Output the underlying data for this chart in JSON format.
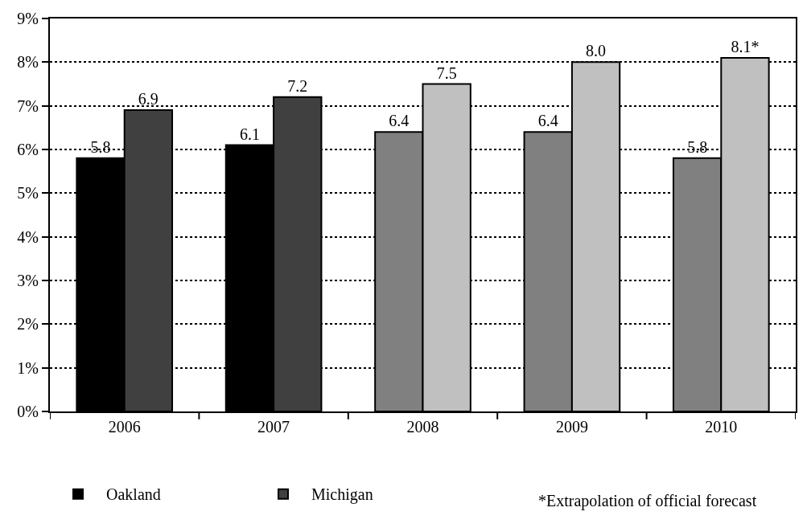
{
  "chart_data": {
    "type": "bar",
    "categories": [
      "2006",
      "2007",
      "2008",
      "2009",
      "2010"
    ],
    "series": [
      {
        "name": "Oakland",
        "colors": [
          "#000000",
          "#000000",
          "#808080",
          "#808080",
          "#808080"
        ],
        "values": [
          5.8,
          6.1,
          6.4,
          6.4,
          5.8
        ],
        "value_labels": [
          "5.8",
          "6.1",
          "6.4",
          "6.4",
          "5.8"
        ]
      },
      {
        "name": "Michigan",
        "colors": [
          "#404040",
          "#404040",
          "#c0c0c0",
          "#c0c0c0",
          "#c0c0c0"
        ],
        "values": [
          6.9,
          7.2,
          7.5,
          8.0,
          8.1
        ],
        "value_labels": [
          "6.9",
          "7.2",
          "7.5",
          "8.0",
          "8.1*"
        ]
      }
    ],
    "ylim": [
      0,
      9
    ],
    "yticks": [
      {
        "value": 0,
        "label": "0%"
      },
      {
        "value": 1,
        "label": "1%"
      },
      {
        "value": 2,
        "label": "2%"
      },
      {
        "value": 3,
        "label": "3%"
      },
      {
        "value": 4,
        "label": "4%"
      },
      {
        "value": 5,
        "label": "5%"
      },
      {
        "value": 6,
        "label": "6%"
      },
      {
        "value": 7,
        "label": "7%"
      },
      {
        "value": 8,
        "label": "8%"
      },
      {
        "value": 9,
        "label": "9%"
      }
    ],
    "grid": "y",
    "legend": "bottom left",
    "annotations": [
      "*Extrapolation of official forecast"
    ]
  }
}
